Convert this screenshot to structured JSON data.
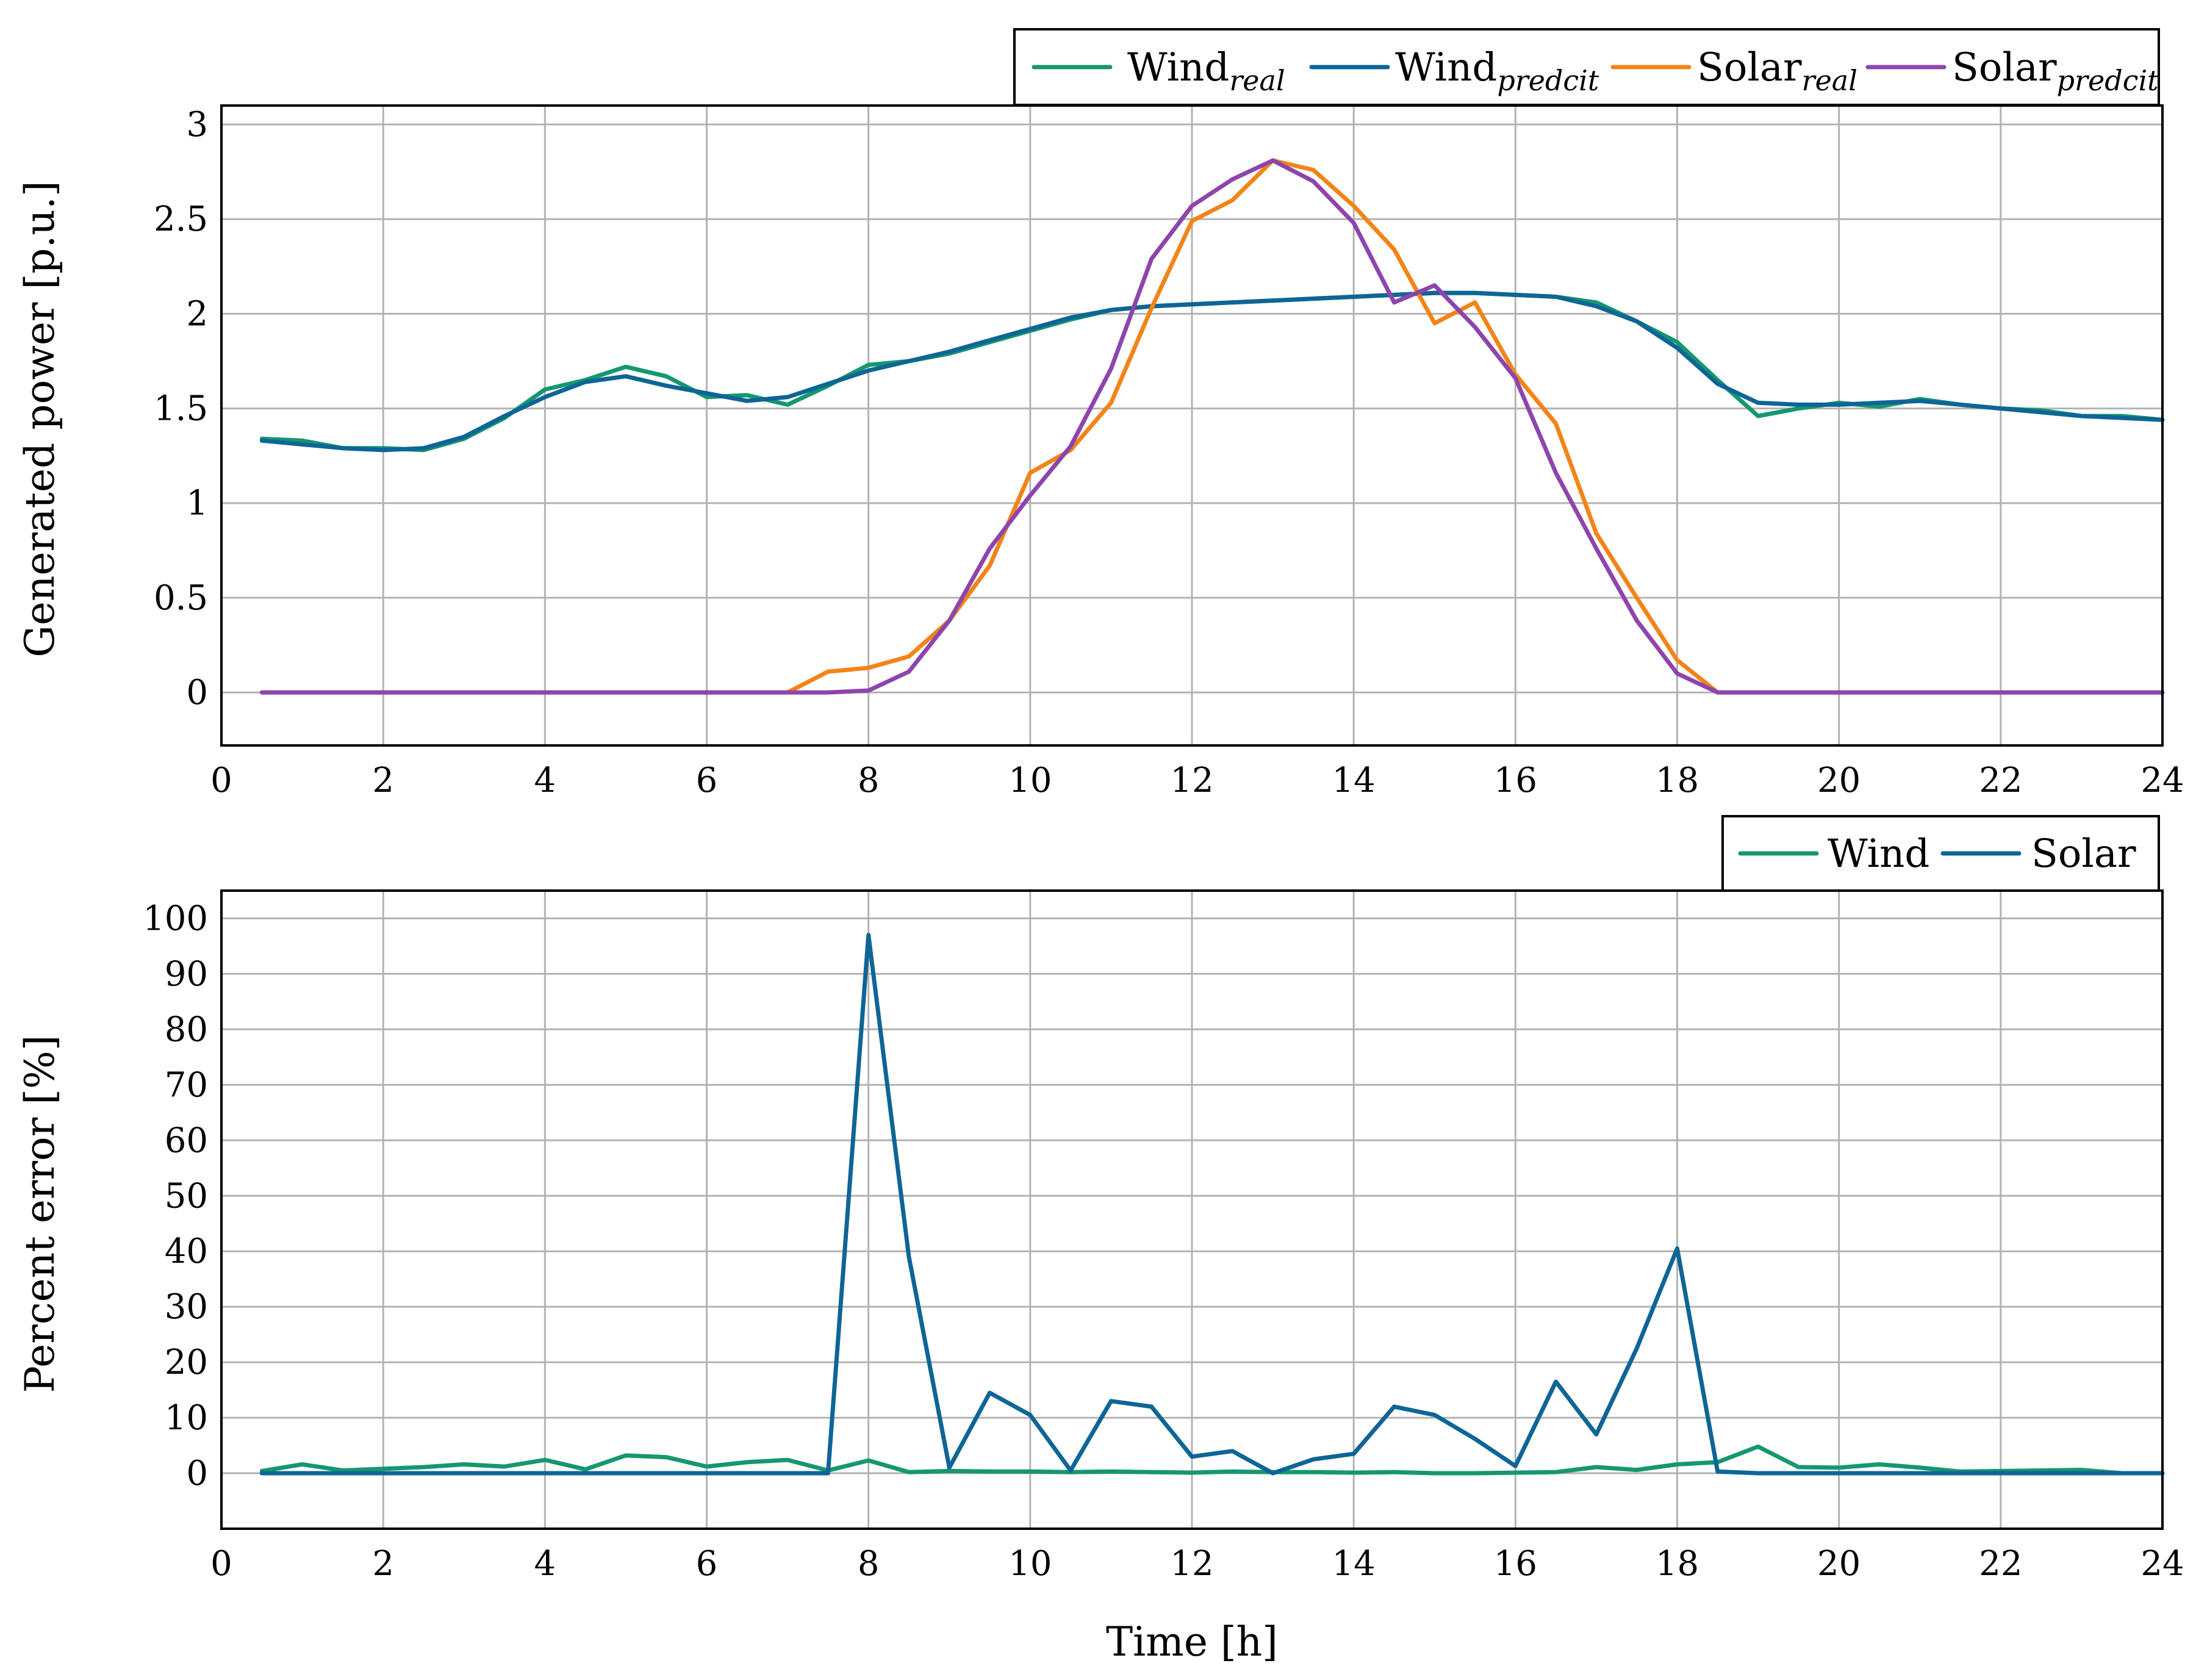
{
  "colors": {
    "wind_real": "#159770",
    "wind_predict": "#0e6596",
    "solar_real": "#f28419",
    "solar_predict": "#8e44ad",
    "wind_error": "#159770",
    "solar_error": "#0e6596"
  },
  "chart_data": [
    {
      "type": "line",
      "ylabel": "Generated power [p.u.]",
      "xlabel": "",
      "xlim": [
        0,
        24
      ],
      "ylim": [
        -0.28,
        3.1
      ],
      "xticks": [
        "0",
        "2",
        "4",
        "6",
        "8",
        "10",
        "12",
        "14",
        "16",
        "18",
        "20",
        "22",
        "24"
      ],
      "yticks": [
        "0",
        "0.5",
        "1",
        "1.5",
        "2",
        "2.5",
        "3"
      ],
      "ytick_values": [
        0,
        0.5,
        1,
        1.5,
        2,
        2.5,
        3
      ],
      "legend_position": "top-right",
      "x": [
        0.5,
        1,
        1.5,
        2,
        2.5,
        3,
        3.5,
        4,
        4.5,
        5,
        5.5,
        6,
        6.5,
        7,
        7.5,
        8,
        8.5,
        9,
        9.5,
        10,
        10.5,
        11,
        11.5,
        12,
        12.5,
        13,
        13.5,
        14,
        14.5,
        15,
        15.5,
        16,
        16.5,
        17,
        17.5,
        18,
        18.5,
        19,
        19.5,
        20,
        20.5,
        21,
        21.5,
        22,
        22.5,
        23,
        23.5,
        24
      ],
      "series": [
        {
          "name": "Wind",
          "subscript": "real",
          "color_key": "wind_real",
          "values": [
            1.34,
            1.33,
            1.29,
            1.29,
            1.28,
            1.34,
            1.45,
            1.6,
            1.65,
            1.72,
            1.67,
            1.56,
            1.57,
            1.52,
            1.62,
            1.73,
            1.75,
            1.79,
            1.85,
            1.91,
            1.97,
            2.02,
            2.04,
            2.05,
            2.06,
            2.07,
            2.08,
            2.09,
            2.1,
            2.11,
            2.11,
            2.1,
            2.09,
            2.06,
            1.96,
            1.85,
            1.65,
            1.46,
            1.5,
            1.53,
            1.51,
            1.55,
            1.52,
            1.5,
            1.49,
            1.46,
            1.46,
            1.44
          ]
        },
        {
          "name": "Wind",
          "subscript": "predcit",
          "color_key": "wind_predict",
          "values": [
            1.33,
            1.31,
            1.29,
            1.28,
            1.29,
            1.35,
            1.46,
            1.56,
            1.64,
            1.67,
            1.62,
            1.58,
            1.54,
            1.56,
            1.63,
            1.7,
            1.75,
            1.8,
            1.86,
            1.92,
            1.98,
            2.02,
            2.04,
            2.05,
            2.06,
            2.07,
            2.08,
            2.09,
            2.1,
            2.11,
            2.11,
            2.1,
            2.09,
            2.04,
            1.96,
            1.82,
            1.63,
            1.53,
            1.52,
            1.52,
            1.53,
            1.54,
            1.52,
            1.5,
            1.48,
            1.46,
            1.45,
            1.44
          ]
        },
        {
          "name": "Solar",
          "subscript": "real",
          "color_key": "solar_real",
          "values": [
            0,
            0,
            0,
            0,
            0,
            0,
            0,
            0,
            0,
            0,
            0,
            0,
            0,
            0,
            0.11,
            0.13,
            0.19,
            0.38,
            0.67,
            1.16,
            1.28,
            1.53,
            2.03,
            2.49,
            2.6,
            2.81,
            2.76,
            2.57,
            2.34,
            1.95,
            2.06,
            1.68,
            1.42,
            0.84,
            0.5,
            0.17,
            0,
            0,
            0,
            0,
            0,
            0,
            0,
            0,
            0,
            0,
            0,
            0
          ]
        },
        {
          "name": "Solar",
          "subscript": "predcit",
          "color_key": "solar_predict",
          "values": [
            0,
            0,
            0,
            0,
            0,
            0,
            0,
            0,
            0,
            0,
            0,
            0,
            0,
            0,
            0,
            0.01,
            0.11,
            0.38,
            0.76,
            1.04,
            1.3,
            1.71,
            2.29,
            2.57,
            2.71,
            2.81,
            2.7,
            2.48,
            2.06,
            2.15,
            1.93,
            1.66,
            1.16,
            0.76,
            0.38,
            0.1,
            0,
            0,
            0,
            0,
            0,
            0,
            0,
            0,
            0,
            0,
            0,
            0
          ]
        }
      ]
    },
    {
      "type": "line",
      "ylabel": "Percent error [%]",
      "xlabel": "Time [h]",
      "xlim": [
        0,
        24
      ],
      "ylim": [
        -10,
        105
      ],
      "xticks": [
        "0",
        "2",
        "4",
        "6",
        "8",
        "10",
        "12",
        "14",
        "16",
        "18",
        "20",
        "22",
        "24"
      ],
      "yticks": [
        "0",
        "10",
        "20",
        "30",
        "40",
        "50",
        "60",
        "70",
        "80",
        "90",
        "100"
      ],
      "ytick_values": [
        0,
        10,
        20,
        30,
        40,
        50,
        60,
        70,
        80,
        90,
        100
      ],
      "legend_position": "top-right",
      "x": [
        0.5,
        1,
        1.5,
        2,
        2.5,
        3,
        3.5,
        4,
        4.5,
        5,
        5.5,
        6,
        6.5,
        7,
        7.5,
        8,
        8.5,
        9,
        9.5,
        10,
        10.5,
        11,
        11.5,
        12,
        12.5,
        13,
        13.5,
        14,
        14.5,
        15,
        15.5,
        16,
        16.5,
        17,
        17.5,
        18,
        18.5,
        19,
        19.5,
        20,
        20.5,
        21,
        21.5,
        22,
        22.5,
        23,
        23.5,
        24
      ],
      "series": [
        {
          "name": "Wind",
          "color_key": "wind_error",
          "values": [
            0.4,
            1.6,
            0.5,
            0.8,
            1.1,
            1.6,
            1.2,
            2.4,
            0.7,
            3.2,
            2.9,
            1.2,
            2.0,
            2.4,
            0.5,
            2.3,
            0.2,
            0.4,
            0.3,
            0.3,
            0.2,
            0.3,
            0.2,
            0.1,
            0.3,
            0.2,
            0.2,
            0.1,
            0.2,
            0,
            0,
            0.1,
            0.2,
            1.1,
            0.6,
            1.6,
            2.0,
            4.8,
            1.1,
            1.0,
            1.6,
            1.0,
            0.3,
            0.4,
            0.5,
            0.6,
            0,
            0
          ]
        },
        {
          "name": "Solar",
          "color_key": "solar_error",
          "values": [
            0,
            0,
            0,
            0,
            0,
            0,
            0,
            0,
            0,
            0,
            0,
            0,
            0,
            0,
            0,
            97,
            39,
            1.0,
            14.5,
            10.5,
            0.5,
            13,
            12,
            3,
            4,
            0,
            2.5,
            3.5,
            12,
            10.5,
            6.2,
            1.3,
            16.5,
            7,
            22.5,
            40.5,
            0.3,
            0,
            0,
            0,
            0,
            0,
            0,
            0,
            0,
            0,
            0,
            0
          ]
        }
      ]
    }
  ]
}
